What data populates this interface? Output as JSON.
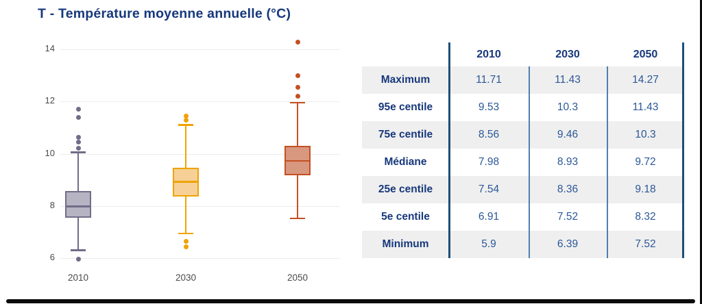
{
  "title": "T - Température moyenne annuelle (°C)",
  "colors": {
    "title_navy": "#17387c",
    "table_value_blue": "#2b5797",
    "separator_strong": "#1f4e79",
    "separator_light": "#4e7fb0",
    "row_stripe": "#efefef",
    "grid": "#ececec",
    "axis_text": "#4a4a4a",
    "frame_border": "#0b0b0b"
  },
  "chart_data": {
    "type": "boxplot",
    "title": "T - Température moyenne annuelle (°C)",
    "ylabel": "",
    "xlabel": "",
    "categories": [
      "2010",
      "2030",
      "2050"
    ],
    "yticks": [
      6,
      8,
      10,
      12,
      14
    ],
    "ylim": [
      5.5,
      14.6
    ],
    "grid": true,
    "series": [
      {
        "name": "2010",
        "minimum": 5.9,
        "p5": 6.91,
        "q1": 7.54,
        "median": 7.98,
        "q3": 8.56,
        "p95": 9.53,
        "maximum": 11.71,
        "whisker_low": 6.3,
        "whisker_high": 10.05,
        "outliers_above": [
          11.7,
          11.4,
          10.62,
          10.45,
          10.2
        ],
        "outliers_below": [
          5.95
        ],
        "stroke": "#706d88",
        "fill": "#b6b4c3"
      },
      {
        "name": "2030",
        "minimum": 6.39,
        "p5": 7.52,
        "q1": 8.36,
        "median": 8.93,
        "q3": 9.46,
        "p95": 10.3,
        "maximum": 11.43,
        "whisker_low": 6.95,
        "whisker_high": 11.1,
        "outliers_above": [
          11.45,
          11.28
        ],
        "outliers_below": [
          6.65,
          6.42
        ],
        "stroke": "#f0a202",
        "fill": "#f6d096"
      },
      {
        "name": "2050",
        "minimum": 7.52,
        "p5": 8.32,
        "q1": 9.18,
        "median": 9.72,
        "q3": 10.3,
        "p95": 11.43,
        "maximum": 14.27,
        "whisker_low": 7.52,
        "whisker_high": 11.95,
        "outliers_above": [
          14.27,
          12.98,
          12.55,
          12.2
        ],
        "outliers_below": [],
        "stroke": "#c44f22",
        "fill": "#d8977f"
      }
    ]
  },
  "table": {
    "columns": [
      "2010",
      "2030",
      "2050"
    ],
    "rows": [
      {
        "label": "Maximum",
        "values": [
          "11.71",
          "11.43",
          "14.27"
        ]
      },
      {
        "label": "95e centile",
        "values": [
          "9.53",
          "10.3",
          "11.43"
        ]
      },
      {
        "label": "75e centile",
        "values": [
          "8.56",
          "9.46",
          "10.3"
        ]
      },
      {
        "label": "Médiane",
        "values": [
          "7.98",
          "8.93",
          "9.72"
        ]
      },
      {
        "label": "25e centile",
        "values": [
          "7.54",
          "8.36",
          "9.18"
        ]
      },
      {
        "label": "5e centile",
        "values": [
          "6.91",
          "7.52",
          "8.32"
        ]
      },
      {
        "label": "Minimum",
        "values": [
          "5.9",
          "6.39",
          "7.52"
        ]
      }
    ]
  }
}
